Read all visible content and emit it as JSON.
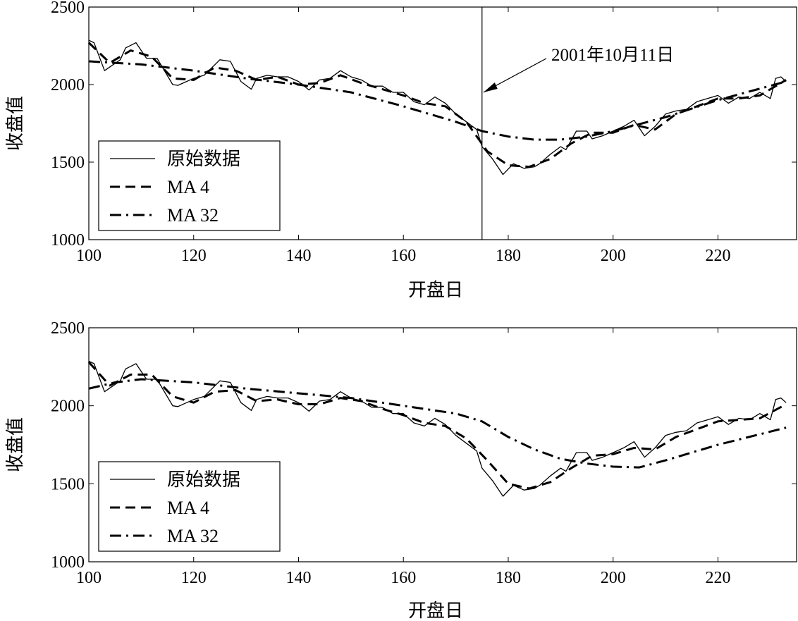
{
  "chart_data": [
    {
      "type": "line",
      "xlabel": "开盘日",
      "ylabel": "收盘值",
      "xlim": [
        100,
        235
      ],
      "ylim": [
        1000,
        2500
      ],
      "xticks": [
        100,
        120,
        140,
        160,
        180,
        200,
        220
      ],
      "yticks": [
        1000,
        1500,
        2000,
        2500
      ],
      "legend_position": "bottom-left",
      "annotation": {
        "text": "2001年10月11日",
        "x": 175
      },
      "series": [
        {
          "name": "原始数据",
          "style": "solid",
          "x": [
            100,
            101,
            103,
            106,
            107,
            109,
            111,
            113,
            116,
            117,
            120,
            122,
            125,
            127,
            129,
            131,
            132,
            134,
            136,
            138,
            140,
            142,
            144,
            146,
            148,
            150,
            152,
            154,
            156,
            158,
            160,
            162,
            164,
            166,
            168,
            170,
            172,
            174,
            175,
            177,
            179,
            181,
            183,
            185,
            186,
            188,
            190,
            191,
            193,
            195,
            196,
            198,
            200,
            202,
            204,
            206,
            208,
            210,
            212,
            214,
            216,
            218,
            220,
            222,
            224,
            226,
            228,
            230,
            231,
            232,
            233
          ],
          "y": [
            2286,
            2270,
            2090,
            2160,
            2236,
            2270,
            2170,
            2170,
            2000,
            1995,
            2040,
            2060,
            2160,
            2150,
            2020,
            1970,
            2040,
            2060,
            2050,
            2050,
            2020,
            1965,
            2030,
            2040,
            2090,
            2050,
            2030,
            1990,
            1990,
            1950,
            1950,
            1890,
            1870,
            1920,
            1880,
            1810,
            1760,
            1710,
            1600,
            1520,
            1420,
            1490,
            1460,
            1470,
            1490,
            1550,
            1600,
            1580,
            1700,
            1700,
            1650,
            1670,
            1700,
            1730,
            1770,
            1670,
            1730,
            1810,
            1830,
            1840,
            1890,
            1910,
            1930,
            1880,
            1920,
            1910,
            1950,
            1910,
            2040,
            2050,
            2020
          ]
        },
        {
          "name": "MA 4",
          "style": "dashed",
          "x": [
            100,
            104,
            108,
            112,
            116,
            120,
            124,
            128,
            132,
            136,
            140,
            144,
            148,
            152,
            156,
            160,
            164,
            168,
            172,
            176,
            180,
            184,
            188,
            192,
            196,
            200,
            204,
            208,
            212,
            216,
            220,
            224,
            228,
            233
          ],
          "y": [
            2270,
            2140,
            2220,
            2180,
            2040,
            2030,
            2110,
            2090,
            2030,
            2050,
            2000,
            2010,
            2060,
            2010,
            1970,
            1930,
            1880,
            1860,
            1760,
            1570,
            1480,
            1470,
            1520,
            1620,
            1690,
            1690,
            1740,
            1710,
            1810,
            1860,
            1910,
            1910,
            1930,
            2030
          ]
        },
        {
          "name": "MA 32",
          "style": "dashdot",
          "x": [
            100,
            110,
            120,
            130,
            140,
            150,
            160,
            170,
            175,
            180,
            185,
            190,
            195,
            200,
            210,
            220,
            233
          ],
          "y": [
            2150,
            2130,
            2090,
            2040,
            2000,
            1950,
            1860,
            1760,
            1700,
            1665,
            1645,
            1645,
            1665,
            1700,
            1790,
            1900,
            2020
          ]
        }
      ]
    },
    {
      "type": "line",
      "xlabel": "开盘日",
      "ylabel": "收盘值",
      "xlim": [
        100,
        235
      ],
      "ylim": [
        1000,
        2500
      ],
      "xticks": [
        100,
        120,
        140,
        160,
        180,
        200,
        220
      ],
      "yticks": [
        1000,
        1500,
        2000,
        2500
      ],
      "legend_position": "bottom-left",
      "series": [
        {
          "name": "原始数据",
          "style": "solid",
          "x": [
            100,
            101,
            103,
            106,
            107,
            109,
            111,
            113,
            116,
            117,
            120,
            122,
            125,
            127,
            129,
            131,
            132,
            134,
            136,
            138,
            140,
            142,
            144,
            146,
            148,
            150,
            152,
            154,
            156,
            158,
            160,
            162,
            164,
            166,
            168,
            170,
            172,
            174,
            175,
            177,
            179,
            181,
            183,
            185,
            186,
            188,
            190,
            191,
            193,
            195,
            196,
            198,
            200,
            202,
            204,
            206,
            208,
            210,
            212,
            214,
            216,
            218,
            220,
            222,
            224,
            226,
            228,
            230,
            231,
            232,
            233
          ],
          "y": [
            2286,
            2270,
            2090,
            2160,
            2236,
            2270,
            2170,
            2170,
            2000,
            1995,
            2040,
            2060,
            2160,
            2150,
            2020,
            1970,
            2040,
            2060,
            2050,
            2050,
            2020,
            1965,
            2030,
            2040,
            2090,
            2050,
            2030,
            1990,
            1990,
            1950,
            1950,
            1890,
            1870,
            1920,
            1880,
            1810,
            1760,
            1710,
            1600,
            1520,
            1420,
            1490,
            1460,
            1470,
            1490,
            1550,
            1600,
            1580,
            1700,
            1700,
            1650,
            1670,
            1700,
            1730,
            1770,
            1670,
            1730,
            1810,
            1830,
            1840,
            1890,
            1910,
            1930,
            1880,
            1920,
            1910,
            1950,
            1910,
            2040,
            2050,
            2020
          ]
        },
        {
          "name": "MA 4",
          "style": "dashed",
          "x": [
            100,
            104,
            108,
            112,
            116,
            120,
            124,
            128,
            132,
            136,
            140,
            144,
            148,
            152,
            156,
            160,
            164,
            168,
            172,
            176,
            180,
            184,
            188,
            192,
            196,
            200,
            204,
            208,
            212,
            216,
            220,
            224,
            228,
            233
          ],
          "y": [
            2280,
            2130,
            2200,
            2200,
            2060,
            2020,
            2090,
            2100,
            2030,
            2040,
            2010,
            2010,
            2050,
            2030,
            1980,
            1940,
            1890,
            1870,
            1790,
            1650,
            1500,
            1470,
            1510,
            1600,
            1680,
            1690,
            1730,
            1720,
            1800,
            1850,
            1900,
            1910,
            1920,
            2010
          ]
        },
        {
          "name": "MA 32",
          "style": "dashdot",
          "x": [
            100,
            105,
            110,
            120,
            130,
            140,
            150,
            160,
            170,
            175,
            180,
            185,
            190,
            195,
            200,
            205,
            210,
            220,
            233
          ],
          "y": [
            2110,
            2150,
            2170,
            2150,
            2110,
            2080,
            2050,
            2000,
            1950,
            1900,
            1800,
            1720,
            1660,
            1630,
            1610,
            1605,
            1650,
            1750,
            1860
          ]
        }
      ]
    }
  ]
}
